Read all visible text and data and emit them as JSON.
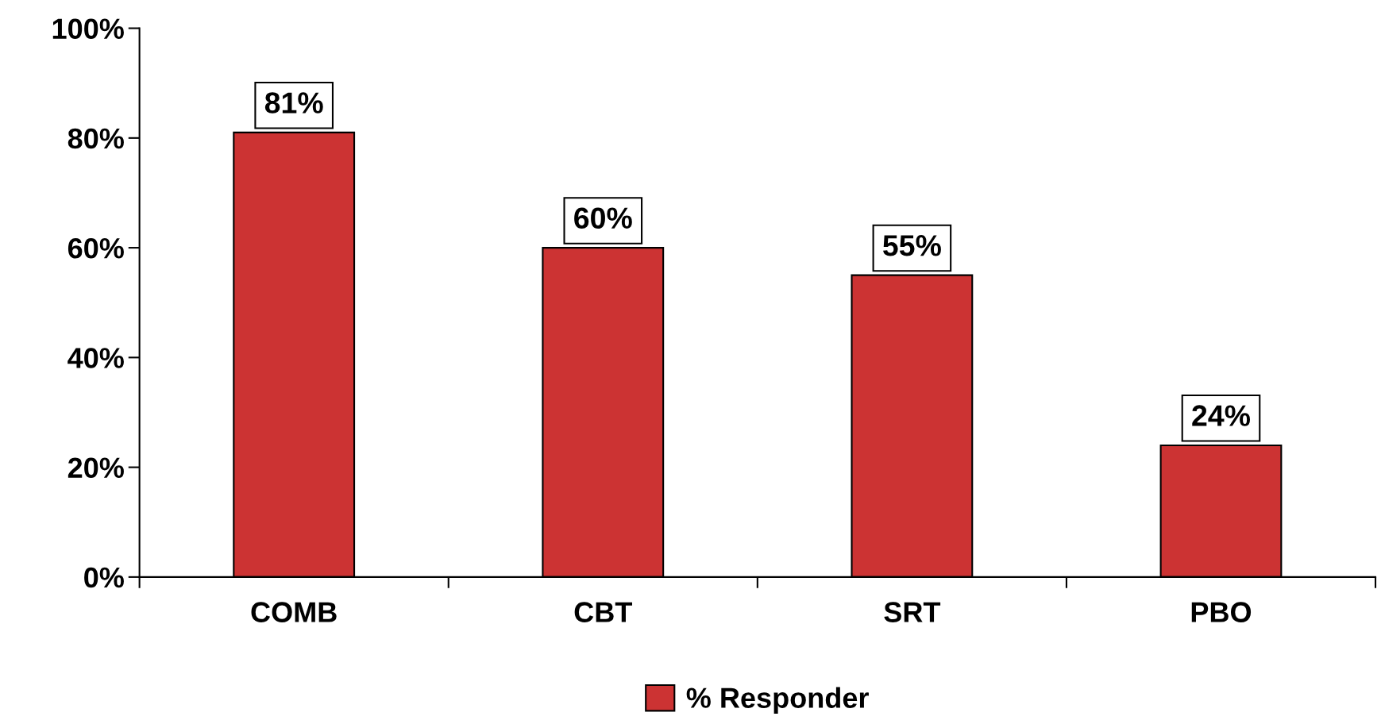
{
  "chart_data": {
    "type": "bar",
    "categories": [
      "COMB",
      "CBT",
      "SRT",
      "PBO"
    ],
    "series": [
      {
        "name": "% Responder",
        "color": "#cc3333",
        "values": [
          81,
          60,
          55,
          24
        ],
        "value_labels": [
          "81%",
          "60%",
          "55%",
          "24%"
        ]
      }
    ],
    "ylim": [
      0,
      100
    ],
    "yticks": [
      {
        "value": 0,
        "label": "0%"
      },
      {
        "value": 20,
        "label": "20%"
      },
      {
        "value": 40,
        "label": "40%"
      },
      {
        "value": 60,
        "label": "60%"
      },
      {
        "value": 80,
        "label": "80%"
      },
      {
        "value": 100,
        "label": "100%"
      }
    ],
    "grid": false,
    "legend": "bottom"
  }
}
